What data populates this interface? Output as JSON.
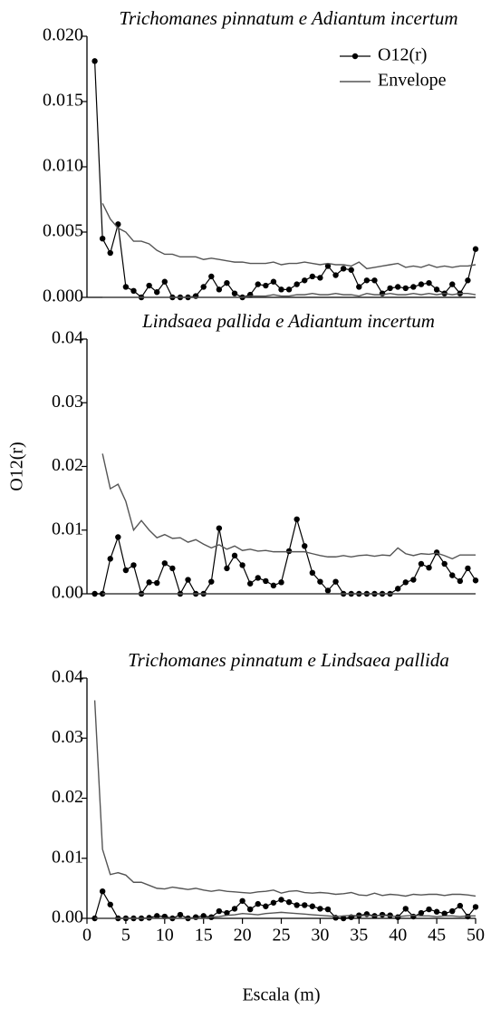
{
  "chart_data": [
    {
      "type": "line",
      "title": "Trichomanes pinnatum e Adiantum incertum",
      "legend": "upper right",
      "x": [
        1,
        2,
        3,
        4,
        5,
        6,
        7,
        8,
        9,
        10,
        11,
        12,
        13,
        14,
        15,
        16,
        17,
        18,
        19,
        20,
        21,
        22,
        23,
        24,
        25,
        26,
        27,
        28,
        29,
        30,
        31,
        32,
        33,
        34,
        35,
        36,
        37,
        38,
        39,
        40,
        41,
        42,
        43,
        44,
        45,
        46,
        47,
        48,
        49,
        50
      ],
      "xlim": [
        0,
        50
      ],
      "ylim": [
        0,
        0.02
      ],
      "yticks": [
        {
          "value": 0,
          "label": "0.000"
        },
        0.005,
        {
          "value": 0.01,
          "label": "0.010"
        },
        0.015,
        {
          "value": 0.02,
          "label": "0.020"
        }
      ],
      "series": [
        {
          "name": "O12(r)",
          "color": "#000000",
          "marker": true,
          "values": [
            0.0181,
            0.0045,
            0.0034,
            0.0056,
            0.0008,
            0.0005,
            0,
            0.0009,
            0.0004,
            0.0012,
            0,
            0,
            0,
            0.0001,
            0.0008,
            0.0016,
            0.0006,
            0.0011,
            0.0003,
            0,
            0.0002,
            0.001,
            0.0009,
            0.0012,
            0.0006,
            0.0006,
            0.001,
            0.0013,
            0.0016,
            0.0015,
            0.0024,
            0.0017,
            0.0022,
            0.0021,
            0.0008,
            0.0013,
            0.0013,
            0.0003,
            0.0007,
            0.0008,
            0.0007,
            0.0008,
            0.001,
            0.0011,
            0.0006,
            0.0003,
            0.001,
            0.0003,
            0.0013,
            0.0037
          ]
        },
        {
          "name": "Envelope",
          "color": "#555555",
          "marker": false,
          "values": [
            null,
            0.0072,
            0.006,
            0.0053,
            0.005,
            0.0043,
            0.0043,
            0.0041,
            0.0036,
            0.0033,
            0.0033,
            0.0031,
            0.0031,
            0.0031,
            0.0029,
            0.003,
            0.0029,
            0.0028,
            0.0027,
            0.0027,
            0.0026,
            0.0026,
            0.0026,
            0.0027,
            0.0025,
            0.0026,
            0.0026,
            0.0027,
            0.0026,
            0.0025,
            0.0026,
            0.0025,
            0.0025,
            0.0024,
            0.0027,
            0.0022,
            0.0023,
            0.0024,
            0.0025,
            0.0026,
            0.0023,
            0.0024,
            0.0023,
            0.0025,
            0.0023,
            0.0024,
            0.0023,
            0.0024,
            0.0024,
            0.0025
          ],
          "lower": [
            null,
            0,
            0,
            0,
            0,
            0,
            0,
            0,
            0,
            0,
            0,
            0,
            0,
            0,
            0,
            0,
            0,
            0,
            0,
            0,
            0.0001,
            0.0001,
            0.0001,
            0.0002,
            0.0001,
            0.0001,
            0.0002,
            0.0002,
            0.0003,
            0.0002,
            0.0002,
            0.0003,
            0.0002,
            0.0002,
            0.0001,
            0.0003,
            0.0002,
            0.0002,
            0.0003,
            0.0002,
            0.0002,
            0.0003,
            0.0002,
            0.0003,
            0.0002,
            0.0003,
            0.0002,
            0.0003,
            0.0003,
            0.0002
          ]
        }
      ]
    },
    {
      "type": "line",
      "title": "Lindsaea pallida e Adiantum incertum",
      "ylabel": "O12(r)",
      "x": [
        1,
        2,
        3,
        4,
        5,
        6,
        7,
        8,
        9,
        10,
        11,
        12,
        13,
        14,
        15,
        16,
        17,
        18,
        19,
        20,
        21,
        22,
        23,
        24,
        25,
        26,
        27,
        28,
        29,
        30,
        31,
        32,
        33,
        34,
        35,
        36,
        37,
        38,
        39,
        40,
        41,
        42,
        43,
        44,
        45,
        46,
        47,
        48,
        49,
        50
      ],
      "xlim": [
        0,
        50
      ],
      "ylim": [
        0,
        0.04
      ],
      "yticks": [
        {
          "value": 0,
          "label": "0.00"
        },
        0.01,
        0.02,
        0.03,
        0.04
      ],
      "series": [
        {
          "color": "#000000",
          "marker": true,
          "values": [
            0,
            0,
            0.0055,
            0.0089,
            0.0037,
            0.0045,
            0,
            0.0018,
            0.0017,
            0.0048,
            0.004,
            0,
            0.0022,
            0,
            0,
            0.0019,
            0.0103,
            0.004,
            0.006,
            0.0045,
            0.0016,
            0.0025,
            0.002,
            0.0013,
            0.0018,
            0.0067,
            0.0117,
            0.0075,
            0.0033,
            0.0019,
            0.0005,
            0.0019,
            0,
            0,
            0,
            0,
            0,
            0,
            0,
            0.0008,
            0.0018,
            0.0022,
            0.0047,
            0.0041,
            0.0065,
            0.0047,
            0.0029,
            0.002,
            0.004,
            0.0021
          ]
        },
        {
          "color": "#555555",
          "marker": false,
          "values": [
            null,
            0.022,
            0.0165,
            0.0172,
            0.0145,
            0.01,
            0.0115,
            0.01,
            0.0088,
            0.0093,
            0.0087,
            0.0088,
            0.0081,
            0.0085,
            0.0078,
            0.0072,
            0.0077,
            0.007,
            0.0075,
            0.0068,
            0.007,
            0.0067,
            0.0068,
            0.0066,
            0.0066,
            0.0066,
            0.0066,
            0.0066,
            0.0063,
            0.006,
            0.0058,
            0.0058,
            0.006,
            0.0058,
            0.006,
            0.0061,
            0.0059,
            0.0061,
            0.006,
            0.0072,
            0.0063,
            0.006,
            0.0063,
            0.0062,
            0.0064,
            0.006,
            0.0055,
            0.0061,
            0.0061,
            0.0061
          ],
          "lower": [
            null,
            0,
            0,
            0,
            0,
            0,
            0,
            0,
            0,
            0,
            0,
            0,
            0,
            0,
            0,
            0,
            0,
            0,
            0,
            0,
            0,
            0,
            0,
            0,
            0,
            0,
            0,
            0,
            0,
            0,
            0,
            0,
            0,
            0,
            0,
            0,
            0,
            0,
            0,
            0,
            0,
            0,
            0,
            0,
            0,
            0,
            0,
            0,
            0,
            0
          ]
        }
      ]
    },
    {
      "type": "line",
      "title": "Trichomanes pinnatum e Lindsaea pallida",
      "xlabel": "Escala (m)",
      "x": [
        1,
        2,
        3,
        4,
        5,
        6,
        7,
        8,
        9,
        10,
        11,
        12,
        13,
        14,
        15,
        16,
        17,
        18,
        19,
        20,
        21,
        22,
        23,
        24,
        25,
        26,
        27,
        28,
        29,
        30,
        31,
        32,
        33,
        34,
        35,
        36,
        37,
        38,
        39,
        40,
        41,
        42,
        43,
        44,
        45,
        46,
        47,
        48,
        49,
        50
      ],
      "xlim": [
        0,
        50
      ],
      "xticks": [
        0,
        5,
        10,
        15,
        20,
        25,
        30,
        35,
        40,
        45,
        50
      ],
      "ylim": [
        0,
        0.04
      ],
      "yticks": [
        {
          "value": 0,
          "label": "0.00"
        },
        0.01,
        0.02,
        0.03,
        0.04
      ],
      "series": [
        {
          "color": "#000000",
          "marker": true,
          "values": [
            0,
            0.0045,
            0.0023,
            0,
            0,
            0,
            0,
            0.0001,
            0.0004,
            0.0003,
            0,
            0.0006,
            0,
            0.0002,
            0.0004,
            0.0002,
            0.0012,
            0.0009,
            0.0016,
            0.0029,
            0.0015,
            0.0024,
            0.002,
            0.0026,
            0.0031,
            0.0027,
            0.0022,
            0.0022,
            0.002,
            0.0016,
            0.0015,
            0.0001,
            0,
            0.0002,
            0.0005,
            0.0007,
            0.0004,
            0.0006,
            0.0005,
            0.0002,
            0.0016,
            0.0003,
            0.0009,
            0.0015,
            0.0011,
            0.0008,
            0.0012,
            0.0021,
            0.0003,
            0.0019
          ]
        },
        {
          "color": "#555555",
          "marker": false,
          "values": [
            0.0363,
            0.0115,
            0.0073,
            0.0076,
            0.0072,
            0.006,
            0.006,
            0.0055,
            0.005,
            0.0049,
            0.0052,
            0.005,
            0.0048,
            0.005,
            0.0047,
            0.0045,
            0.0047,
            0.0045,
            0.0044,
            0.0043,
            0.0042,
            0.0044,
            0.0045,
            0.0047,
            0.0042,
            0.0045,
            0.0046,
            0.0043,
            0.0042,
            0.0043,
            0.0042,
            0.004,
            0.0041,
            0.0043,
            0.0039,
            0.0038,
            0.0042,
            0.0038,
            0.004,
            0.0039,
            0.0037,
            0.004,
            0.0039,
            0.004,
            0.004,
            0.0038,
            0.004,
            0.004,
            0.0039,
            0.0037
          ],
          "lower": [
            0,
            0,
            0,
            0,
            0,
            0,
            0,
            0,
            0,
            0,
            0,
            0,
            0,
            0,
            0,
            0.0002,
            0.0003,
            0.0005,
            0.0006,
            0.0008,
            0.0007,
            0.0006,
            0.0008,
            0.0009,
            0.001,
            0.0009,
            0.0008,
            0.0007,
            0.0006,
            0.0005,
            0.0004,
            0.0003,
            0.0004,
            0.0005,
            0.0004,
            0.0005,
            0.0004,
            0.0005,
            0.0004,
            0.0003,
            0.0004,
            0.0005,
            0.0004,
            0.0004,
            0.0003,
            0.0004,
            0.0004,
            0.0003,
            0.0004,
            0.0004
          ]
        }
      ]
    }
  ]
}
